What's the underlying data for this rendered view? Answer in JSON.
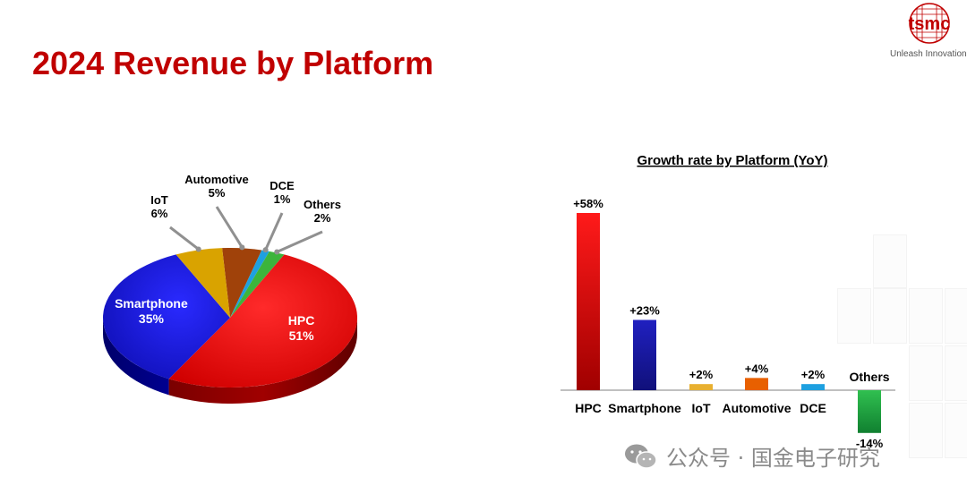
{
  "page": {
    "title": "2024 Revenue by Platform",
    "logo_text": "tsmc",
    "tagline": "Unleash Innovation",
    "watermark": "公众号 · 国金电子研究"
  },
  "colors": {
    "title": "#c00000",
    "hpc": "#e00000",
    "smartphone": "#1a1acc",
    "iot": "#d9a300",
    "automotive": "#a0420a",
    "dce": "#1ea0e0",
    "others": "#3cb43c",
    "growth_iot": "#e8b030",
    "growth_automotive": "#e86000",
    "growth_dce": "#1ea0e0",
    "growth_others": "#1ea040"
  },
  "chart_data": [
    {
      "type": "pie",
      "title": "",
      "slices": [
        {
          "name": "HPC",
          "value": 51,
          "label": "51%"
        },
        {
          "name": "Smartphone",
          "value": 35,
          "label": "35%"
        },
        {
          "name": "IoT",
          "value": 6,
          "label": "6%"
        },
        {
          "name": "Automotive",
          "value": 5,
          "label": "5%"
        },
        {
          "name": "DCE",
          "value": 1,
          "label": "1%"
        },
        {
          "name": "Others",
          "value": 2,
          "label": "2%"
        }
      ]
    },
    {
      "type": "bar",
      "title": "Growth rate by Platform (YoY)",
      "categories": [
        "HPC",
        "Smartphone",
        "IoT",
        "Automotive",
        "DCE",
        "Others"
      ],
      "values": [
        58,
        23,
        2,
        4,
        2,
        -14
      ],
      "labels": [
        "+58%",
        "+23%",
        "+2%",
        "+4%",
        "+2%",
        "-14%"
      ],
      "xlabel": "",
      "ylabel": "",
      "ylim": [
        -14,
        58
      ]
    }
  ]
}
